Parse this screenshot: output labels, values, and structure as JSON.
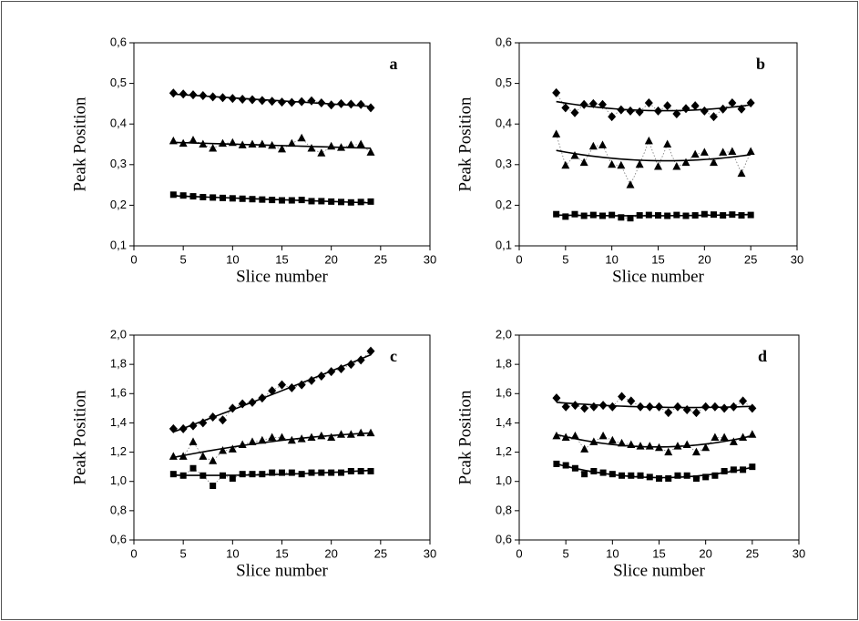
{
  "chart_data": [
    {
      "type": "scatter",
      "label": "a",
      "x_label": "Slice number",
      "y_label": "Peak Position",
      "x": [
        4,
        5,
        6,
        7,
        8,
        9,
        10,
        11,
        12,
        13,
        14,
        15,
        16,
        17,
        18,
        19,
        20,
        21,
        22,
        23,
        24
      ],
      "xlim": [
        0,
        30
      ],
      "xticks": [
        0,
        5,
        10,
        15,
        20,
        25,
        30
      ],
      "ylim": [
        0.1,
        0.6
      ],
      "yticks": [
        {
          "value": 0.1,
          "label": "0,1"
        },
        {
          "value": 0.2,
          "label": "0,2"
        },
        {
          "value": 0.3,
          "label": "0,3"
        },
        {
          "value": 0.4,
          "label": "0,4"
        },
        {
          "value": 0.5,
          "label": "0,5"
        },
        {
          "value": 0.6,
          "label": "0,6"
        }
      ],
      "fit": "linear",
      "series": [
        {
          "marker": "diamond",
          "color": "#000000",
          "values": [
            0.476,
            0.474,
            0.472,
            0.47,
            0.467,
            0.465,
            0.463,
            0.461,
            0.46,
            0.458,
            0.456,
            0.454,
            0.453,
            0.455,
            0.457,
            0.452,
            0.447,
            0.45,
            0.449,
            0.448,
            0.44
          ]
        },
        {
          "marker": "triangle",
          "color": "#000000",
          "values": [
            0.358,
            0.352,
            0.36,
            0.35,
            0.34,
            0.352,
            0.354,
            0.348,
            0.35,
            0.35,
            0.347,
            0.338,
            0.352,
            0.365,
            0.34,
            0.328,
            0.345,
            0.342,
            0.348,
            0.35,
            0.33
          ]
        },
        {
          "marker": "square",
          "color": "#000000",
          "values": [
            0.226,
            0.224,
            0.222,
            0.22,
            0.219,
            0.218,
            0.217,
            0.216,
            0.215,
            0.214,
            0.213,
            0.212,
            0.212,
            0.213,
            0.21,
            0.21,
            0.209,
            0.208,
            0.207,
            0.208,
            0.209
          ]
        }
      ]
    },
    {
      "type": "scatter",
      "label": "b",
      "x_label": "Slice number",
      "y_label": "Peak Position",
      "x": [
        4,
        5,
        6,
        7,
        8,
        9,
        10,
        11,
        12,
        13,
        14,
        15,
        16,
        17,
        18,
        19,
        20,
        21,
        22,
        23,
        24,
        25
      ],
      "xlim": [
        0,
        30
      ],
      "xticks": [
        0,
        5,
        10,
        15,
        20,
        25,
        30
      ],
      "ylim": [
        0.1,
        0.6
      ],
      "yticks": [
        {
          "value": 0.1,
          "label": "0,1"
        },
        {
          "value": 0.2,
          "label": "0,2"
        },
        {
          "value": 0.3,
          "label": "0,3"
        },
        {
          "value": 0.4,
          "label": "0,4"
        },
        {
          "value": 0.5,
          "label": "0,5"
        },
        {
          "value": 0.6,
          "label": "0,6"
        }
      ],
      "fit": "quadratic",
      "series": [
        {
          "marker": "diamond",
          "color": "#000000",
          "values": [
            0.477,
            0.44,
            0.428,
            0.448,
            0.45,
            0.448,
            0.418,
            0.435,
            0.432,
            0.43,
            0.452,
            0.432,
            0.445,
            0.425,
            0.438,
            0.445,
            0.432,
            0.418,
            0.437,
            0.452,
            0.437,
            0.452
          ]
        },
        {
          "marker": "triangle",
          "color": "#000000",
          "values": [
            0.375,
            0.298,
            0.322,
            0.305,
            0.345,
            0.348,
            0.3,
            0.298,
            0.25,
            0.3,
            0.358,
            0.295,
            0.35,
            0.295,
            0.305,
            0.325,
            0.33,
            0.305,
            0.33,
            0.332,
            0.278,
            0.332
          ]
        },
        {
          "marker": "square",
          "color": "#000000",
          "values": [
            0.178,
            0.172,
            0.178,
            0.174,
            0.176,
            0.174,
            0.176,
            0.17,
            0.168,
            0.175,
            0.176,
            0.175,
            0.174,
            0.176,
            0.174,
            0.175,
            0.178,
            0.177,
            0.175,
            0.177,
            0.175,
            0.176
          ]
        }
      ]
    },
    {
      "type": "scatter",
      "label": "c",
      "x_label": "Slice number",
      "y_label": "Peak Position",
      "x": [
        4,
        5,
        6,
        7,
        8,
        9,
        10,
        11,
        12,
        13,
        14,
        15,
        16,
        17,
        18,
        19,
        20,
        21,
        22,
        23,
        24
      ],
      "xlim": [
        0,
        30
      ],
      "xticks": [
        0,
        5,
        10,
        15,
        20,
        25,
        30
      ],
      "ylim": [
        0.6,
        2.0
      ],
      "yticks": [
        {
          "value": 0.6,
          "label": "0,6"
        },
        {
          "value": 0.8,
          "label": "0,8"
        },
        {
          "value": 1.0,
          "label": "1,0"
        },
        {
          "value": 1.2,
          "label": "1,2"
        },
        {
          "value": 1.4,
          "label": "1,4"
        },
        {
          "value": 1.6,
          "label": "1,6"
        },
        {
          "value": 1.8,
          "label": "1,8"
        },
        {
          "value": 2.0,
          "label": "2,0"
        }
      ],
      "fit": "quadratic",
      "series": [
        {
          "marker": "diamond",
          "color": "#000000",
          "values": [
            1.36,
            1.36,
            1.38,
            1.4,
            1.44,
            1.42,
            1.5,
            1.53,
            1.54,
            1.57,
            1.62,
            1.66,
            1.64,
            1.66,
            1.69,
            1.72,
            1.75,
            1.77,
            1.8,
            1.83,
            1.89
          ]
        },
        {
          "marker": "triangle",
          "color": "#000000",
          "values": [
            1.17,
            1.17,
            1.27,
            1.17,
            1.14,
            1.21,
            1.22,
            1.25,
            1.27,
            1.28,
            1.3,
            1.3,
            1.28,
            1.29,
            1.3,
            1.31,
            1.3,
            1.32,
            1.32,
            1.33,
            1.33
          ]
        },
        {
          "marker": "square",
          "color": "#000000",
          "values": [
            1.05,
            1.04,
            1.09,
            1.04,
            0.97,
            1.04,
            1.02,
            1.05,
            1.05,
            1.05,
            1.06,
            1.06,
            1.06,
            1.05,
            1.06,
            1.06,
            1.06,
            1.06,
            1.07,
            1.07,
            1.07
          ]
        }
      ]
    },
    {
      "type": "scatter",
      "label": "d",
      "x_label": "Slice number",
      "y_label": "Pcak Position",
      "x": [
        4,
        5,
        6,
        7,
        8,
        9,
        10,
        11,
        12,
        13,
        14,
        15,
        16,
        17,
        18,
        19,
        20,
        21,
        22,
        23,
        24,
        25
      ],
      "xlim": [
        0,
        30
      ],
      "xticks": [
        0,
        5,
        10,
        15,
        20,
        25,
        30
      ],
      "ylim": [
        0.6,
        2.0
      ],
      "yticks": [
        {
          "value": 0.6,
          "label": "0,6"
        },
        {
          "value": 0.8,
          "label": "0,8"
        },
        {
          "value": 1.0,
          "label": "1,0"
        },
        {
          "value": 1.2,
          "label": "1,2"
        },
        {
          "value": 1.4,
          "label": "1,4"
        },
        {
          "value": 1.6,
          "label": "1,6"
        },
        {
          "value": 1.8,
          "label": "1,8"
        },
        {
          "value": 2.0,
          "label": "2,0"
        }
      ],
      "fit": "quadratic",
      "series": [
        {
          "marker": "diamond",
          "color": "#000000",
          "values": [
            1.57,
            1.51,
            1.52,
            1.5,
            1.51,
            1.52,
            1.51,
            1.58,
            1.55,
            1.51,
            1.51,
            1.51,
            1.47,
            1.51,
            1.49,
            1.47,
            1.51,
            1.51,
            1.5,
            1.51,
            1.55,
            1.5
          ]
        },
        {
          "marker": "triangle",
          "color": "#000000",
          "values": [
            1.31,
            1.3,
            1.31,
            1.22,
            1.27,
            1.31,
            1.28,
            1.26,
            1.25,
            1.24,
            1.24,
            1.23,
            1.2,
            1.24,
            1.25,
            1.2,
            1.23,
            1.3,
            1.3,
            1.27,
            1.3,
            1.32
          ]
        },
        {
          "marker": "square",
          "color": "#000000",
          "values": [
            1.12,
            1.11,
            1.09,
            1.05,
            1.07,
            1.06,
            1.05,
            1.04,
            1.04,
            1.04,
            1.03,
            1.02,
            1.02,
            1.04,
            1.04,
            1.02,
            1.03,
            1.04,
            1.07,
            1.08,
            1.08,
            1.1
          ]
        }
      ]
    }
  ]
}
